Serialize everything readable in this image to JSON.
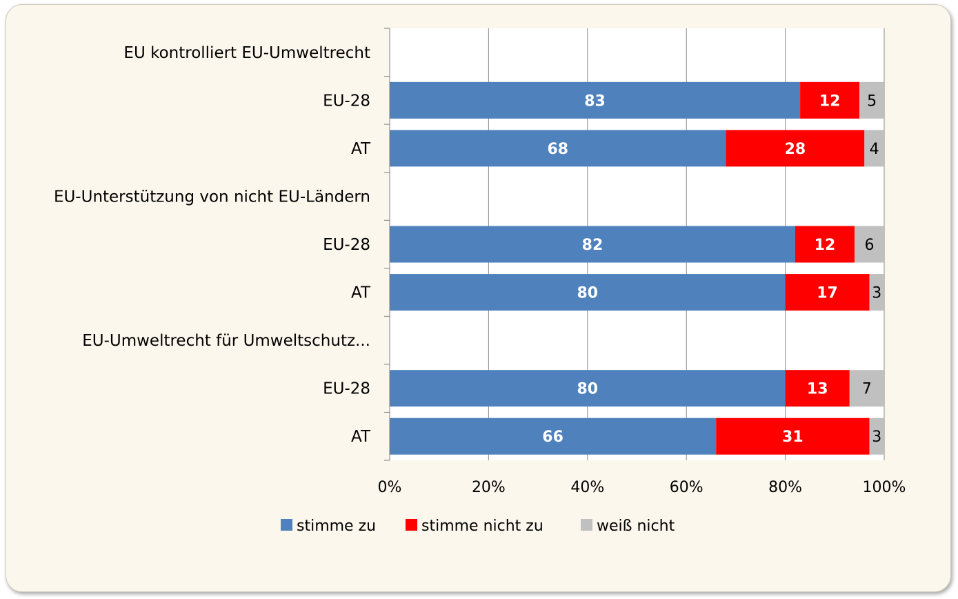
{
  "chart_data": {
    "type": "bar",
    "orientation": "horizontal",
    "stacking": "percent",
    "categories": [
      "EU kontrolliert EU-Umweltrecht",
      "EU-28",
      "AT",
      "EU-Unterstützung von nicht EU-Ländern",
      "EU-28",
      "AT",
      "EU-Umweltrecht für Umweltschutz...",
      "EU-28",
      "AT"
    ],
    "series": [
      {
        "name": "stimme zu",
        "color": "#4f81bd",
        "label_color": "#ffffff",
        "label_bold": true,
        "values": [
          null,
          83,
          68,
          null,
          82,
          80,
          null,
          80,
          66
        ]
      },
      {
        "name": "stimme nicht zu",
        "color": "#ff0000",
        "label_color": "#ffffff",
        "label_bold": true,
        "values": [
          null,
          12,
          28,
          null,
          12,
          17,
          null,
          13,
          31
        ]
      },
      {
        "name": "weiß nicht",
        "color": "#c0c0c0",
        "label_color": "#000000",
        "label_bold": false,
        "values": [
          null,
          5,
          4,
          null,
          6,
          3,
          null,
          7,
          3
        ]
      }
    ],
    "x_ticks": [
      "0%",
      "20%",
      "40%",
      "60%",
      "80%",
      "100%"
    ],
    "xlim": [
      0,
      100
    ],
    "grid": true,
    "legend_position": "bottom"
  }
}
